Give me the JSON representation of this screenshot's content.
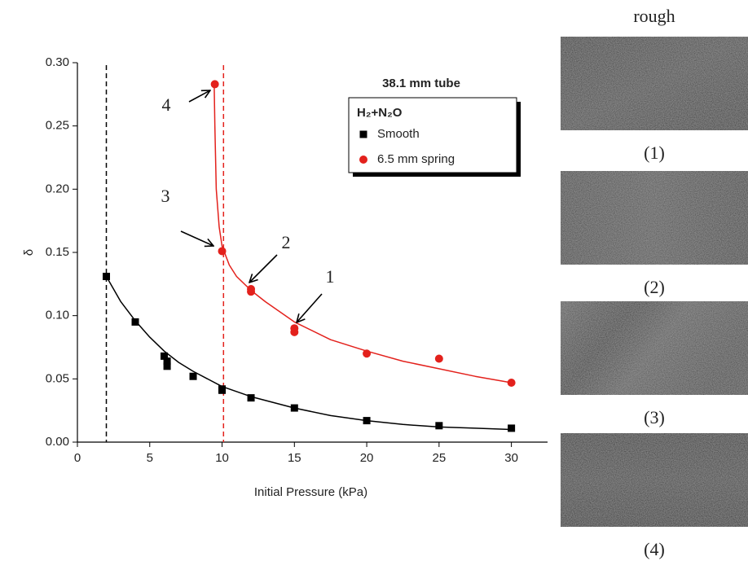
{
  "chart_data": {
    "type": "scatter",
    "title": "38.1 mm tube",
    "legend_title": "H₂+N₂O",
    "legend": "upper right",
    "xlabel": "Initial Pressure (kPa)",
    "ylabel": "δ",
    "xlim": [
      0,
      32.5
    ],
    "ylim": [
      0,
      0.3
    ],
    "xticks": [
      0,
      5,
      10,
      15,
      20,
      25,
      30
    ],
    "yticks": [
      {
        "value": 0,
        "label": "0.00"
      },
      {
        "value": 0.05,
        "label": "0.05"
      },
      {
        "value": 0.1,
        "label": "0.10"
      },
      {
        "value": 0.15,
        "label": "0.15"
      },
      {
        "value": 0.2,
        "label": "0.20"
      },
      {
        "value": 0.25,
        "label": "0.25"
      },
      {
        "value": 0.3,
        "label": "0.30"
      }
    ],
    "series": [
      {
        "name": "Smooth",
        "color": "#000000",
        "marker": "square",
        "x": [
          2,
          4,
          6,
          6.2,
          6.2,
          8,
          10,
          10,
          12,
          15,
          20,
          25,
          30
        ],
        "values": [
          0.131,
          0.095,
          0.068,
          0.064,
          0.06,
          0.052,
          0.042,
          0.041,
          0.035,
          0.027,
          0.017,
          0.013,
          0.011
        ]
      },
      {
        "name": "6.5 mm spring",
        "color": "#e3211c",
        "marker": "circle",
        "x": [
          9.5,
          10,
          12,
          12,
          15,
          15,
          20,
          25,
          30
        ],
        "values": [
          0.283,
          0.151,
          0.121,
          0.119,
          0.09,
          0.087,
          0.07,
          0.066,
          0.047
        ]
      }
    ],
    "fits": [
      {
        "color": "#000000",
        "x": [
          2,
          3,
          4,
          5,
          6,
          7,
          8,
          10,
          12,
          15,
          17.5,
          20,
          22.5,
          25,
          27.5,
          30
        ],
        "values": [
          0.131,
          0.111,
          0.096,
          0.083,
          0.072,
          0.063,
          0.056,
          0.044,
          0.036,
          0.027,
          0.021,
          0.017,
          0.014,
          0.012,
          0.011,
          0.01
        ]
      },
      {
        "color": "#e3211c",
        "x": [
          9.45,
          9.5,
          9.6,
          9.8,
          10,
          10.5,
          11,
          12,
          13,
          15,
          17.5,
          20,
          22.5,
          25,
          27.5,
          30
        ],
        "values": [
          0.285,
          0.25,
          0.2,
          0.17,
          0.155,
          0.14,
          0.131,
          0.12,
          0.111,
          0.095,
          0.081,
          0.072,
          0.064,
          0.058,
          0.052,
          0.047
        ]
      }
    ],
    "vlines": [
      {
        "x": 2,
        "color": "#000000"
      },
      {
        "x": 10.1,
        "color": "#e3211c"
      }
    ],
    "annotations": [
      "4",
      "3",
      "2",
      "1"
    ]
  },
  "panel": {
    "title": "rough",
    "labels": [
      "(1)",
      "(2)",
      "(3)",
      "(4)"
    ]
  }
}
